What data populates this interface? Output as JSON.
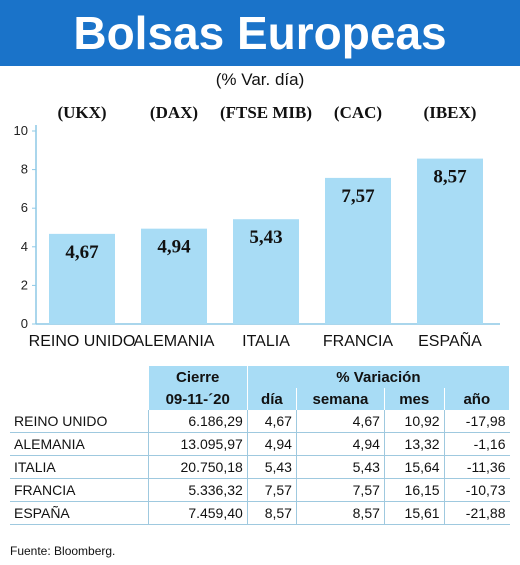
{
  "header": {
    "title": "Bolsas Europeas",
    "subtitle": "(% Var. día)"
  },
  "colors": {
    "title_bar": "#1a73c9",
    "bar": "#a8dcf5",
    "table_header": "#a8dcf5",
    "axis": "#8ec9e6"
  },
  "chart_data": {
    "type": "bar",
    "categories": [
      "REINO UNIDO",
      "ALEMANIA",
      "ITALIA",
      "FRANCIA",
      "ESPAÑA"
    ],
    "index_labels": [
      "(UKX)",
      "(DAX)",
      "(FTSE MIB)",
      "(CAC)",
      "(IBEX)"
    ],
    "values": [
      4.67,
      4.94,
      5.43,
      7.57,
      8.57
    ],
    "value_labels": [
      "4,67",
      "4,94",
      "5,43",
      "7,57",
      "8,57"
    ],
    "ylim": [
      0,
      10
    ],
    "yticks": [
      0,
      2,
      4,
      6,
      8,
      10
    ],
    "grid": false
  },
  "table": {
    "group_headers": [
      "Cierre",
      "% Variación"
    ],
    "columns": [
      "09-11-´20",
      "día",
      "semana",
      "mes",
      "año"
    ],
    "rows": [
      {
        "name": "REINO UNIDO",
        "cierre": "6.186,29",
        "dia": "4,67",
        "semana": "4,67",
        "mes": "10,92",
        "ano": "-17,98"
      },
      {
        "name": "ALEMANIA",
        "cierre": "13.095,97",
        "dia": "4,94",
        "semana": "4,94",
        "mes": "13,32",
        "ano": "-1,16"
      },
      {
        "name": "ITALIA",
        "cierre": "20.750,18",
        "dia": "5,43",
        "semana": "5,43",
        "mes": "15,64",
        "ano": "-11,36"
      },
      {
        "name": "FRANCIA",
        "cierre": "5.336,32",
        "dia": "7,57",
        "semana": "7,57",
        "mes": "16,15",
        "ano": "-10,73"
      },
      {
        "name": "ESPAÑA",
        "cierre": "7.459,40",
        "dia": "8,57",
        "semana": "8,57",
        "mes": "15,61",
        "ano": "-21,88"
      }
    ]
  },
  "footer": {
    "source": "Fuente: Bloomberg."
  }
}
